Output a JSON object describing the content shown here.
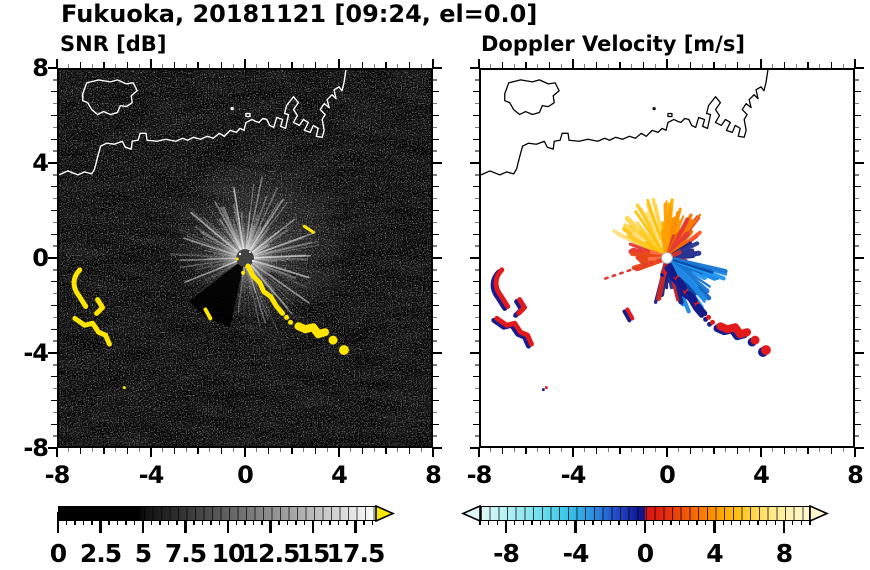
{
  "title": "Fukuoka, 20181121 [09:24, el=0.0]",
  "panels": {
    "snr": {
      "subtitle": "SNR [dB]",
      "x_tick_labels": [
        "-8",
        "-4",
        "0",
        "4",
        "8"
      ],
      "y_tick_labels": [
        "8",
        "4",
        "0",
        "-4",
        "-8"
      ]
    },
    "vel": {
      "subtitle": "Doppler Velocity [m/s]",
      "x_tick_labels": [
        "-8",
        "-4",
        "0",
        "4",
        "8"
      ]
    }
  },
  "colorbars": {
    "snr": {
      "tick_labels": [
        "0",
        "2.5",
        "5",
        "7.5",
        "10",
        "12.5",
        "15",
        "17.5"
      ],
      "range": [
        0,
        18.8
      ],
      "minor_step": 0.5,
      "colormap": "grayscale black to white, discrete 0.5 dB cells",
      "over_arrow_color": "#ffe800"
    },
    "vel": {
      "tick_labels": [
        "-8",
        "-4",
        "0",
        "4",
        "8"
      ],
      "range": [
        -9.5,
        9.5
      ],
      "minor_step": 0.5,
      "colormap": "diverging: pale cyan-blue-navy (negative) | red-orange-yellow-cream (positive), discrete 0.5 m/s cells",
      "under_arrow_color": "#dff8f7",
      "over_arrow_color": "#fff8ce"
    }
  },
  "chart_data": [
    {
      "type": "heatmap",
      "panel": "left",
      "title": "SNR [dB]",
      "xlim": [
        -8,
        8
      ],
      "ylim": [
        -8,
        8
      ],
      "x_ticks": [
        -8,
        -4,
        0,
        4,
        8
      ],
      "y_ticks": [
        8,
        4,
        0,
        -4,
        -8
      ],
      "minor_tick_step": 0.5,
      "colorbar": {
        "range": [
          0,
          18.8
        ],
        "major_ticks": [
          0,
          2.5,
          5,
          7.5,
          10,
          12.5,
          15,
          17.5
        ],
        "minor_step": 0.5,
        "colormap": "black to white grayscale",
        "over_color": "yellow"
      },
      "background": "black with faint gray speckle noise",
      "features": [
        {
          "name": "radar_center",
          "at": [
            0,
            0
          ],
          "desc": "dark gray disk with bright white radial ray artifacts out to r ~2.5, dark empty wedge toward azimuth 190-235 deg"
        },
        {
          "name": "coastline",
          "color": "white",
          "desc": "island near (-5.7, 6.9); mainland shore from (-8, 3.6) rising to y ~5.5 near x=0; angular harbor piers from (1.2, 5.5) up to (4.3, 8)"
        },
        {
          "name": "high_snr_echoes",
          "color": "yellow (over scale, > ~18.8 dB)",
          "segments": [
            {
              "from": [
                -7.1,
                -0.5
              ],
              "to": [
                -6.9,
                -2.0
              ]
            },
            {
              "from": [
                -6.4,
                -1.8
              ],
              "to": [
                -6.4,
                -2.4
              ]
            },
            {
              "from": [
                -7.3,
                -2.6
              ],
              "to": [
                -5.9,
                -3.7
              ]
            },
            {
              "from": [
                0.15,
                -0.35
              ],
              "to": [
                1.6,
                -2.35
              ]
            },
            {
              "from": [
                2.3,
                -2.9
              ],
              "to": [
                3.5,
                -3.2
              ]
            },
            {
              "from": [
                -1.7,
                -2.2
              ],
              "to": [
                -1.5,
                -2.55
              ]
            },
            {
              "from": [
                2.55,
                1.35
              ],
              "to": [
                2.95,
                1.1
              ]
            }
          ],
          "blobs": [
            [
              3.8,
              -3.5
            ],
            [
              4.25,
              -3.95
            ]
          ]
        }
      ]
    },
    {
      "type": "heatmap",
      "panel": "right",
      "title": "Doppler Velocity [m/s]",
      "xlim": [
        -8,
        8
      ],
      "ylim": [
        -8,
        8
      ],
      "x_ticks": [
        -8,
        -4,
        0,
        4,
        8
      ],
      "y_ticks": [
        8,
        4,
        0,
        -4,
        -8
      ],
      "minor_tick_step": 0.5,
      "colorbar": {
        "range": [
          -9.5,
          9.5
        ],
        "major_ticks": [
          -8,
          -4,
          0,
          4,
          8
        ],
        "minor_step": 0.5,
        "colormap": "diverging: pale cyan to blue to navy (negative) | red to orange to yellow to cream (positive)"
      },
      "background": "white (no data)",
      "features": [
        {
          "name": "radar_center",
          "at": [
            0,
            0
          ],
          "desc": "small white circle"
        },
        {
          "name": "velocity_fan",
          "desc": "spiky wedge fan radius ~1-2.6 around radar: yellow azimuth 295-350, orange 350-25, orange-red 25-55, mixed red/navy 55-100, bright blue 100-160, navy with red 160-200, red-orange blob 246-292, dotted red ray at 251"
        },
        {
          "name": "echoes",
          "desc": "same echo bands as SNR panel, drawn red with dark navy fringes"
        }
      ]
    }
  ]
}
